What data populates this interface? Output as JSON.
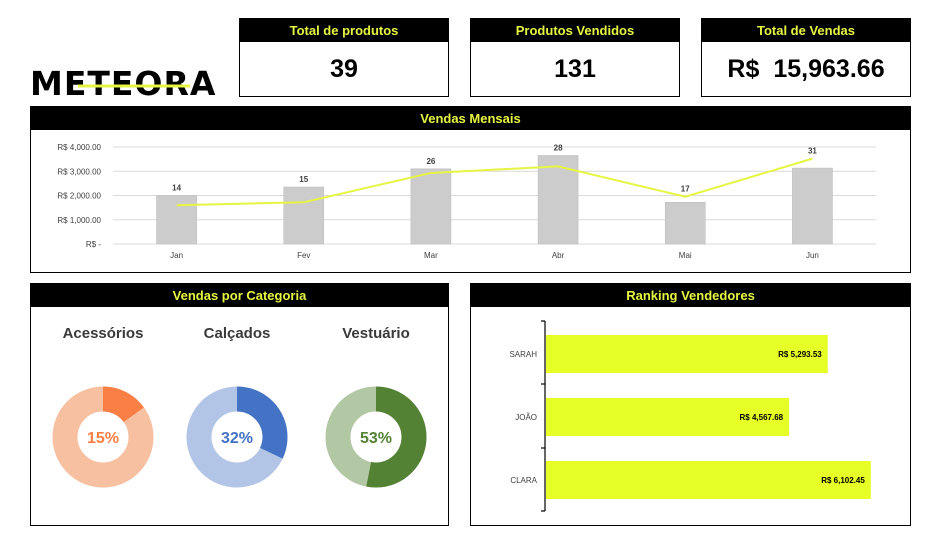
{
  "brand": {
    "name": "METEORA",
    "accent": "#e6f542"
  },
  "kpis": [
    {
      "title": "Total de produtos",
      "value": "39"
    },
    {
      "title": "Produtos Vendidos",
      "value": "131"
    },
    {
      "title": "Total de Vendas",
      "currency": "R$",
      "value": "15,963.66"
    }
  ],
  "chart_data": [
    {
      "type": "bar",
      "title": "Vendas Mensais",
      "categories": [
        "Jan",
        "Fev",
        "Mar",
        "Abr",
        "Mai",
        "Jun"
      ],
      "series": [
        {
          "values": [
            2000,
            2350,
            3100,
            3650,
            1720,
            3130
          ],
          "color": "#cccccc"
        },
        {
          "type": "line",
          "values": [
            1600,
            1720,
            2930,
            3200,
            1950,
            3520
          ],
          "labels": [
            "14",
            "15",
            "26",
            "28",
            "17",
            "31"
          ],
          "color": "#e6f542"
        }
      ],
      "ylim": [
        0,
        4000
      ],
      "yticks": [
        0,
        1000,
        2000,
        3000,
        4000
      ],
      "ytick_labels": [
        "R$ -",
        "R$ 1,000.00",
        "R$ 2,000.00",
        "R$ 3,000.00",
        "R$ 4,000.00"
      ],
      "grid": true
    },
    {
      "type": "pie",
      "title": "Vendas por Categoria",
      "slices": [
        {
          "label": "Acessórios",
          "percent": 15,
          "value_label": "15%",
          "color": "#fa7f45",
          "rest_color": "#f6c0a1"
        },
        {
          "label": "Calçados",
          "percent": 32,
          "value_label": "32%",
          "color": "#4472c4",
          "rest_color": "#b3c5e6"
        },
        {
          "label": "Vestuário",
          "percent": 53,
          "value_label": "53%",
          "color": "#548235",
          "rest_color": "#b2c8a4"
        }
      ]
    },
    {
      "type": "bar",
      "orientation": "horizontal",
      "title": "Ranking Vendedores",
      "categories": [
        "SARAH",
        "JOÃO",
        "CLARA"
      ],
      "values": [
        5293.53,
        4567.68,
        6102.45
      ],
      "value_labels": [
        "R$ 5,293.53",
        "R$ 4,567.68",
        "R$ 6,102.45"
      ],
      "xlim": [
        0,
        7000
      ],
      "color": "#e6ff26"
    }
  ]
}
